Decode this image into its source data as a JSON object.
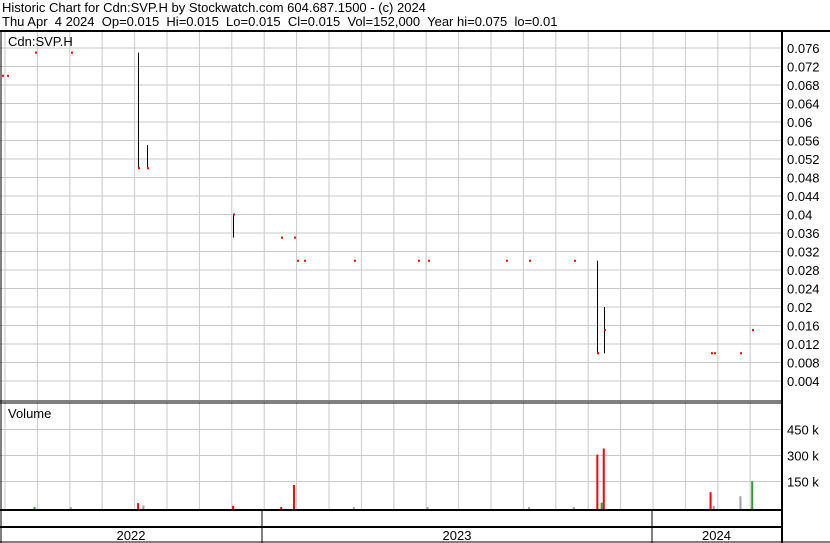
{
  "header": {
    "title": "Historic Chart for Cdn:SVP.H by Stockwatch.com 604.687.1500 - (c) 2024",
    "quote": "Thu Apr  4 2024  Op=0.015  Hi=0.015  Lo=0.015  Cl=0.015  Vol=152,000  Year hi=0.075  lo=0.01"
  },
  "colors": {
    "down": "#ff0000",
    "up": "#2ca02c",
    "unchanged": "#a0a0a0",
    "price_bar": "#000000",
    "close_tick": "#ff0000",
    "grid": "#c8c8c8"
  },
  "chart_data": [
    {
      "type": "ohlc",
      "title": "Cdn:SVP.H",
      "y_ticks": [
        "0.076",
        "0.072",
        "0.068",
        "0.064",
        "0.06",
        "0.056",
        "0.052",
        "0.048",
        "0.044",
        "0.04",
        "0.036",
        "0.032",
        "0.028",
        "0.024",
        "0.02",
        "0.016",
        "0.012",
        "0.008",
        "0.004"
      ],
      "ylim": [
        0.0,
        0.08
      ],
      "x_labels": [
        "2022",
        "2023",
        "2024"
      ],
      "grid": true,
      "bars": [
        {
          "date": "2022-05-03",
          "hi": 0.07,
          "lo": 0.07,
          "cl": 0.07
        },
        {
          "date": "2022-05-07",
          "hi": 0.07,
          "lo": 0.07,
          "cl": 0.07
        },
        {
          "date": "2022-06-02",
          "hi": 0.075,
          "lo": 0.075,
          "cl": 0.075
        },
        {
          "date": "2022-07-06",
          "hi": 0.075,
          "lo": 0.075,
          "cl": 0.075
        },
        {
          "date": "2022-09-07",
          "hi": 0.075,
          "lo": 0.05,
          "cl": 0.05
        },
        {
          "date": "2022-09-15",
          "hi": 0.055,
          "lo": 0.05,
          "cl": 0.05
        },
        {
          "date": "2022-12-05",
          "hi": 0.04,
          "lo": 0.035,
          "cl": 0.04
        },
        {
          "date": "2023-01-19",
          "hi": 0.035,
          "lo": 0.035,
          "cl": 0.035
        },
        {
          "date": "2023-01-31",
          "hi": 0.035,
          "lo": 0.035,
          "cl": 0.035
        },
        {
          "date": "2023-02-03",
          "hi": 0.03,
          "lo": 0.03,
          "cl": 0.03
        },
        {
          "date": "2023-02-09",
          "hi": 0.03,
          "lo": 0.03,
          "cl": 0.03
        },
        {
          "date": "2023-03-28",
          "hi": 0.03,
          "lo": 0.03,
          "cl": 0.03
        },
        {
          "date": "2023-05-27",
          "hi": 0.03,
          "lo": 0.03,
          "cl": 0.03
        },
        {
          "date": "2023-06-05",
          "hi": 0.03,
          "lo": 0.03,
          "cl": 0.03
        },
        {
          "date": "2023-08-17",
          "hi": 0.03,
          "lo": 0.03,
          "cl": 0.03
        },
        {
          "date": "2023-09-08",
          "hi": 0.03,
          "lo": 0.03,
          "cl": 0.03
        },
        {
          "date": "2023-10-20",
          "hi": 0.03,
          "lo": 0.03,
          "cl": 0.03
        },
        {
          "date": "2023-11-11",
          "hi": 0.03,
          "lo": 0.01,
          "cl": 0.01
        },
        {
          "date": "2023-11-17",
          "hi": 0.02,
          "lo": 0.01,
          "cl": 0.015
        },
        {
          "date": "2024-02-25",
          "hi": 0.01,
          "lo": 0.01,
          "cl": 0.01
        },
        {
          "date": "2024-02-28",
          "hi": 0.01,
          "lo": 0.01,
          "cl": 0.01
        },
        {
          "date": "2024-03-24",
          "hi": 0.01,
          "lo": 0.01,
          "cl": 0.01
        },
        {
          "date": "2024-04-04",
          "hi": 0.015,
          "lo": 0.015,
          "cl": 0.015
        }
      ]
    },
    {
      "type": "bar",
      "title": "Volume",
      "y_ticks": [
        "450 k",
        "300 k",
        "150 k"
      ],
      "ylim": [
        0,
        520000
      ],
      "volumes": [
        {
          "date": "2022-06-02",
          "value": 3000,
          "dir": "up"
        },
        {
          "date": "2022-07-06",
          "value": 2000,
          "dir": "unchanged"
        },
        {
          "date": "2022-09-07",
          "value": 25000,
          "dir": "down"
        },
        {
          "date": "2022-09-12",
          "value": 12000,
          "dir": "unchanged"
        },
        {
          "date": "2022-12-05",
          "value": 10000,
          "dir": "down"
        },
        {
          "date": "2023-01-19",
          "value": 3000,
          "dir": "down"
        },
        {
          "date": "2023-01-31",
          "value": 130000,
          "dir": "down"
        },
        {
          "date": "2023-03-28",
          "value": 3000,
          "dir": "unchanged"
        },
        {
          "date": "2023-06-05",
          "value": 3000,
          "dir": "unchanged"
        },
        {
          "date": "2023-09-08",
          "value": 2000,
          "dir": "unchanged"
        },
        {
          "date": "2023-10-20",
          "value": 3000,
          "dir": "unchanged"
        },
        {
          "date": "2023-11-11",
          "value": 305000,
          "dir": "down"
        },
        {
          "date": "2023-11-15",
          "value": 28000,
          "dir": "up"
        },
        {
          "date": "2023-11-17",
          "value": 340000,
          "dir": "down"
        },
        {
          "date": "2024-02-25",
          "value": 88000,
          "dir": "down"
        },
        {
          "date": "2024-02-28",
          "value": 8000,
          "dir": "unchanged"
        },
        {
          "date": "2024-03-24",
          "value": 65000,
          "dir": "unchanged"
        },
        {
          "date": "2024-04-04",
          "value": 152000,
          "dir": "up"
        }
      ]
    }
  ]
}
